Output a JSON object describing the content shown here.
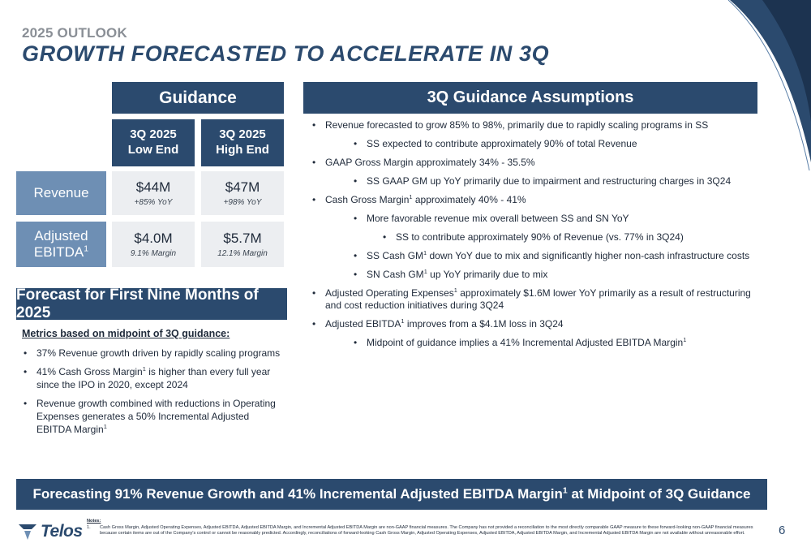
{
  "header": {
    "overline": "2025 OUTLOOK",
    "title": "GROWTH FORECASTED TO ACCELERATE IN 3Q"
  },
  "guidance": {
    "title": "Guidance",
    "columns": [
      {
        "line1": "3Q 2025",
        "line2": "Low End"
      },
      {
        "line1": "3Q 2025",
        "line2": "High End"
      }
    ],
    "rows": [
      {
        "label_line1": "Revenue",
        "label_line2": "",
        "label_sup": "",
        "cells": [
          {
            "value": "$44M",
            "sub": "+85% YoY"
          },
          {
            "value": "$47M",
            "sub": "+98% YoY"
          }
        ]
      },
      {
        "label_line1": "Adjusted",
        "label_line2": "EBITDA",
        "label_sup": "1",
        "cells": [
          {
            "value": "$4.0M",
            "sub": "9.1% Margin"
          },
          {
            "value": "$5.7M",
            "sub": "12.1% Margin"
          }
        ]
      }
    ]
  },
  "forecast": {
    "title": "Forecast for First Nine Months of 2025",
    "lead": "Metrics based on midpoint of 3Q guidance:",
    "items": [
      {
        "pre": "37% Revenue growth driven by rapidly scaling programs",
        "sup": "",
        "post": ""
      },
      {
        "pre": "41% Cash Gross Margin",
        "sup": "1",
        "post": " is higher than every full year since the IPO in 2020, except 2024"
      },
      {
        "pre": "Revenue growth combined with reductions in Operating Expenses generates a 50% Incremental Adjusted EBITDA Margin",
        "sup": "1",
        "post": ""
      }
    ]
  },
  "assumptions": {
    "title": "3Q Guidance Assumptions",
    "items": [
      {
        "level": 1,
        "pre": "Revenue forecasted to grow 85% to 98%, primarily due to rapidly scaling programs in SS",
        "sup": "",
        "post": ""
      },
      {
        "level": 2,
        "pre": "SS expected to contribute approximately 90% of total Revenue",
        "sup": "",
        "post": ""
      },
      {
        "level": 1,
        "pre": "GAAP Gross Margin approximately 34% - 35.5%",
        "sup": "",
        "post": ""
      },
      {
        "level": 2,
        "pre": "SS GAAP GM up YoY primarily due to impairment and restructuring charges in 3Q24",
        "sup": "",
        "post": ""
      },
      {
        "level": 1,
        "pre": "Cash Gross Margin",
        "sup": "1",
        "post": " approximately 40% - 41%"
      },
      {
        "level": 2,
        "pre": "More favorable revenue mix overall between SS and SN YoY",
        "sup": "",
        "post": ""
      },
      {
        "level": 3,
        "pre": "SS to contribute approximately 90% of Revenue (vs. 77% in 3Q24)",
        "sup": "",
        "post": ""
      },
      {
        "level": 2,
        "pre": "SS Cash GM",
        "sup": "1",
        "post": " down YoY due to mix and significantly higher non-cash infrastructure costs"
      },
      {
        "level": 2,
        "pre": "SN Cash GM",
        "sup": "1",
        "post": " up YoY primarily due to mix"
      },
      {
        "level": 1,
        "pre": "Adjusted Operating Expenses",
        "sup": "1",
        "post": " approximately $1.6M lower YoY primarily as a result of restructuring and cost reduction initiatives during 3Q24"
      },
      {
        "level": 1,
        "pre": "Adjusted EBITDA",
        "sup": "1",
        "post": " improves from a $4.1M loss in 3Q24"
      },
      {
        "level": 2,
        "pre": "Midpoint of guidance implies a 41% Incremental Adjusted EBITDA Margin",
        "sup": "1",
        "post": ""
      }
    ]
  },
  "banner": {
    "pre": "Forecasting 91% Revenue Growth and 41% Incremental Adjusted EBITDA Margin",
    "sup": "1",
    "post": " at Midpoint of 3Q Guidance"
  },
  "footer": {
    "logo_text": "Telos",
    "notes_title": "Notes:",
    "notes": [
      {
        "num": "1.",
        "text": "Cash Gross Margin, Adjusted Operating Expenses, Adjusted EBITDA, Adjusted EBITDA Margin, and Incremental Adjusted EBITDA Margin are non-GAAP financial measures. The Company has not provided a reconciliation to the most directly comparable GAAP measure to these forward-looking non-GAAP financial measures because certain items are out of the Company's control or cannot be reasonably predicted. Accordingly, reconciliations of forward-looking Cash Gross Margin, Adjusted Operating Expenses, Adjusted EBITDA, Adjusted EBITDA Margin, and Incremental Adjusted EBITDA Margin are not available without unreasonable effort."
      }
    ],
    "page_number": "6"
  },
  "colors": {
    "navy": "#2b4a6e",
    "steel_blue": "#6e8fb4",
    "cell_bg": "#eceef1",
    "overline_gray": "#8a8f96"
  }
}
